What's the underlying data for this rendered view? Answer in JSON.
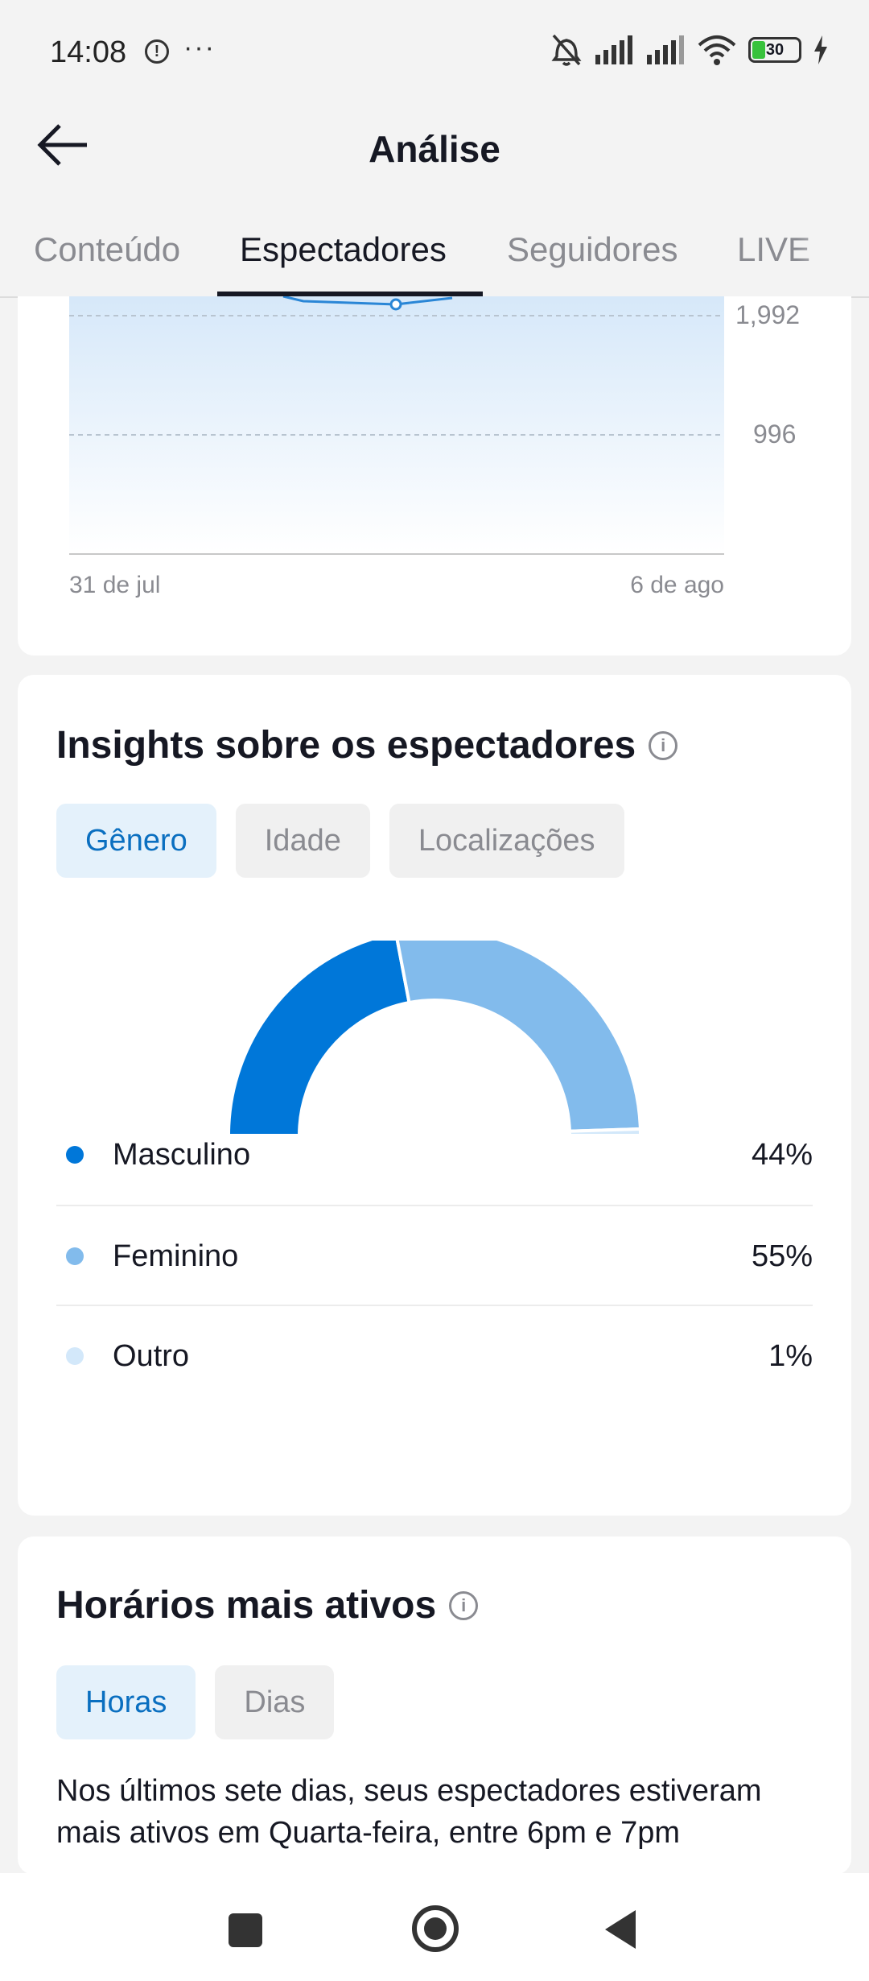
{
  "status_bar": {
    "time": "14:08",
    "alert_glyph": "!",
    "more_glyph": "···",
    "battery": "30"
  },
  "header": {
    "title": "Análise"
  },
  "tabs": [
    "Conteúdo",
    "Espectadores",
    "Seguidores",
    "LIVE"
  ],
  "active_tab": "Espectadores",
  "views_chart": {
    "y_ticks": [
      "1,992",
      "996"
    ],
    "x_labels": [
      "31 de jul",
      "6 de ago"
    ]
  },
  "insights": {
    "title": "Insights sobre os espectadores",
    "filters": [
      "Gênero",
      "Idade",
      "Localizações"
    ],
    "active_filter": "Gênero",
    "legend": [
      {
        "label": "Masculino",
        "value": "44%",
        "color": "#0077d9"
      },
      {
        "label": "Feminino",
        "value": "55%",
        "color": "#82bbec"
      },
      {
        "label": "Outro",
        "value": "1%",
        "color": "#d3e8fa"
      }
    ]
  },
  "chart_data": {
    "type": "pie",
    "title": "",
    "categories": [
      "Masculino",
      "Feminino",
      "Outro"
    ],
    "values": [
      44,
      55,
      1
    ],
    "colors": [
      "#0077d9",
      "#82bbec",
      "#d3e8fa"
    ],
    "shape": "half-donut"
  },
  "active_times": {
    "title": "Horários mais ativos",
    "filters": [
      "Horas",
      "Dias"
    ],
    "active_filter": "Horas",
    "description": "Nos últimos sete dias, seus espectadores estiveram mais ativos em Quarta-feira, entre 6pm e 7pm"
  },
  "nav_icons": [
    "recents-icon",
    "home-icon",
    "back-icon"
  ]
}
